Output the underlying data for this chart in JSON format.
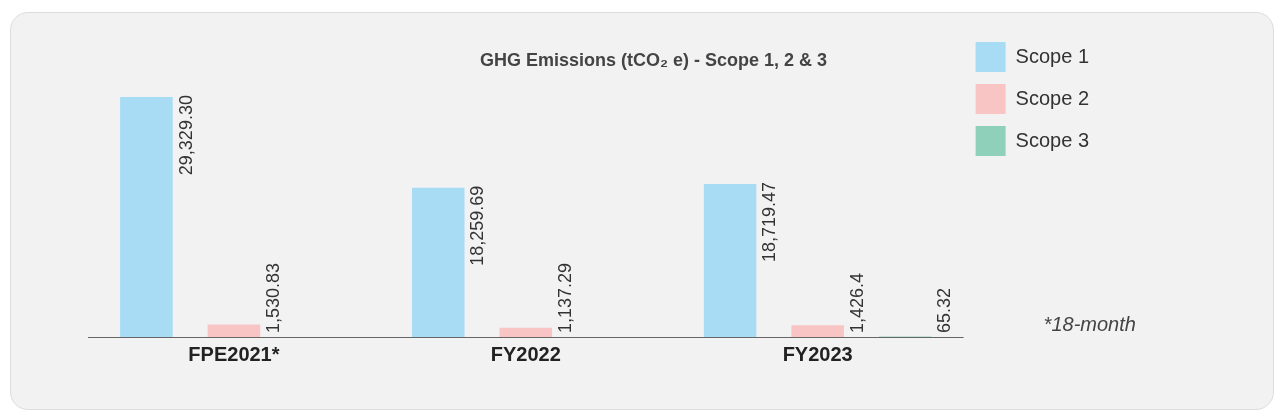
{
  "chart_data": {
    "type": "bar",
    "title": "GHG Emissions (tCO₂ e) - Scope 1, 2 & 3",
    "categories": [
      "FPE2021*",
      "FY2022",
      "FY2023"
    ],
    "series": [
      {
        "name": "Scope 1",
        "color": "#a8dcf5",
        "values": [
          29329.3,
          18259.69,
          18719.47
        ],
        "value_labels": [
          "29,329.30",
          "18,259.69",
          "18,719.47"
        ]
      },
      {
        "name": "Scope 2",
        "color": "#f8c4c4",
        "values": [
          1530.83,
          1137.29,
          1426.4
        ],
        "value_labels": [
          "1,530.83",
          "1,137.29",
          "1,426.4"
        ]
      },
      {
        "name": "Scope 3",
        "color": "#8fd0bb",
        "values": [
          null,
          null,
          65.32
        ],
        "value_labels": [
          null,
          null,
          "65.32"
        ]
      }
    ],
    "grid": false,
    "legend": "top right",
    "annotations": [
      "*18-month"
    ]
  }
}
